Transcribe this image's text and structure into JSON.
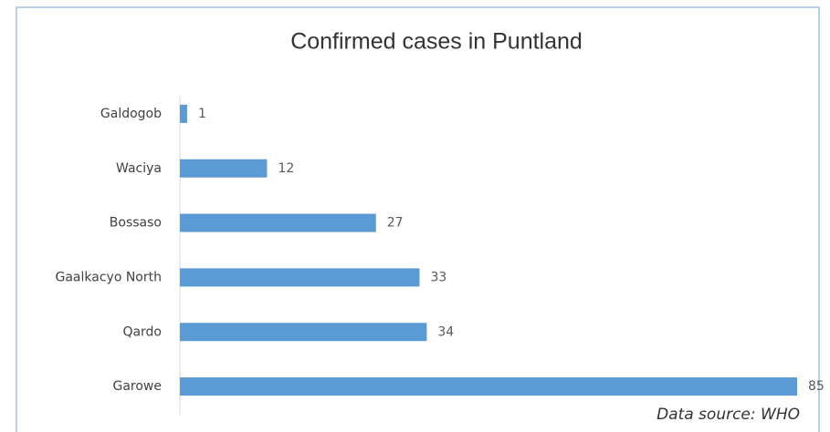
{
  "chart_data": {
    "type": "hbar",
    "title": "Confirmed cases in Puntland",
    "categories": [
      "Galdogob",
      "Waciya",
      "Bossaso",
      "Gaalkacyo North",
      "Qardo",
      "Garowe"
    ],
    "values": [
      1,
      12,
      27,
      33,
      34,
      85
    ],
    "color": "#5b9bd5",
    "xlim": [
      0,
      85
    ],
    "annotation": "Data source: WHO"
  }
}
